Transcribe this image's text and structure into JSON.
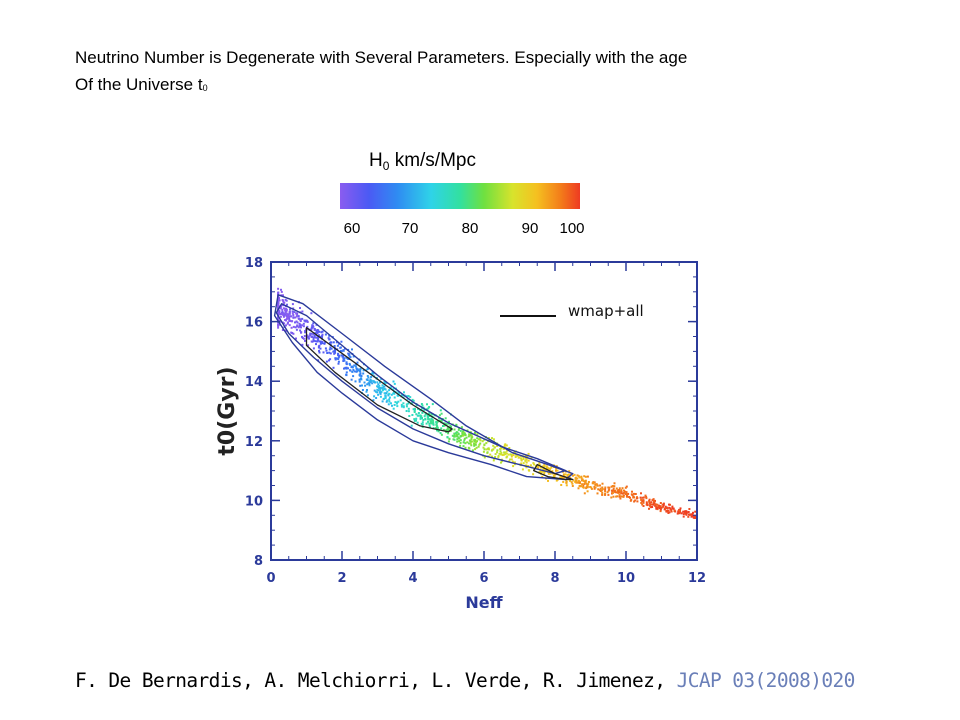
{
  "heading": {
    "line1": "Neutrino Number is Degenerate with Several Parameters.  Especially with the age",
    "line2_text": "Of the Universe t",
    "line2_sub": "0"
  },
  "colorbar": {
    "title_main": "H",
    "title_sub": "0",
    "title_unit": " km/s/Mpc",
    "ticks": [
      "60",
      "70",
      "80",
      "90",
      "100"
    ]
  },
  "citation": {
    "authors": "F. De Bernardis, A. Melchiorri, L. Verde, R. Jimenez, ",
    "journal": "JCAP 03(2008)020"
  },
  "colors": {
    "axis": "#2b3a9a",
    "contour": "#2b3a9a",
    "inner_contour": "#222222",
    "journal": "#6a7fb8"
  },
  "chart_data": {
    "type": "scatter",
    "xlabel": "Neff",
    "ylabel": "t0(Gyr)",
    "xlim": [
      0,
      12
    ],
    "ylim": [
      8,
      18
    ],
    "x_ticks": [
      "0",
      "2",
      "4",
      "6",
      "8",
      "10",
      "12"
    ],
    "y_ticks": [
      "8",
      "10",
      "12",
      "14",
      "16",
      "18"
    ],
    "legend": {
      "label": "wmap+all",
      "placement": "top-right"
    },
    "colorbar_range": [
      60,
      100
    ],
    "series": [
      {
        "kind": "scatter_band",
        "centerline": [
          {
            "x": 0.3,
            "t0": 16.4,
            "h0": 60
          },
          {
            "x": 1.0,
            "t0": 15.7,
            "h0": 62
          },
          {
            "x": 2.0,
            "t0": 14.8,
            "h0": 67
          },
          {
            "x": 3.0,
            "t0": 13.8,
            "h0": 73
          },
          {
            "x": 4.0,
            "t0": 13.1,
            "h0": 78
          },
          {
            "x": 5.0,
            "t0": 12.4,
            "h0": 82
          },
          {
            "x": 6.0,
            "t0": 11.8,
            "h0": 86
          },
          {
            "x": 7.0,
            "t0": 11.4,
            "h0": 89
          },
          {
            "x": 8.0,
            "t0": 10.9,
            "h0": 92
          },
          {
            "x": 9.0,
            "t0": 10.5,
            "h0": 95
          },
          {
            "x": 10.0,
            "t0": 10.2,
            "h0": 97
          },
          {
            "x": 11.0,
            "t0": 9.8,
            "h0": 99
          },
          {
            "x": 11.9,
            "t0": 9.5,
            "h0": 100
          }
        ]
      },
      {
        "kind": "contour_outer",
        "points": [
          [
            0.2,
            16.9
          ],
          [
            0.9,
            16.6
          ],
          [
            2.0,
            15.6
          ],
          [
            3.2,
            14.5
          ],
          [
            4.5,
            13.4
          ],
          [
            5.5,
            12.5
          ],
          [
            6.8,
            11.6
          ],
          [
            7.8,
            11.2
          ],
          [
            8.5,
            10.9
          ],
          [
            8.3,
            10.7
          ],
          [
            7.2,
            10.8
          ],
          [
            6.2,
            11.2
          ],
          [
            5.0,
            11.6
          ],
          [
            4.0,
            12.0
          ],
          [
            3.0,
            12.7
          ],
          [
            2.0,
            13.6
          ],
          [
            1.3,
            14.3
          ],
          [
            0.6,
            15.3
          ],
          [
            0.1,
            16.2
          ]
        ]
      },
      {
        "kind": "contour_inner",
        "points": [
          [
            0.3,
            16.6
          ],
          [
            1.0,
            16.2
          ],
          [
            2.0,
            15.2
          ],
          [
            3.0,
            14.2
          ],
          [
            4.0,
            13.3
          ],
          [
            5.0,
            12.6
          ],
          [
            6.5,
            11.8
          ],
          [
            7.5,
            11.4
          ],
          [
            8.3,
            11.0
          ],
          [
            8.0,
            10.9
          ],
          [
            7.0,
            11.2
          ],
          [
            6.0,
            11.5
          ],
          [
            5.0,
            11.9
          ],
          [
            4.0,
            12.4
          ],
          [
            3.0,
            13.1
          ],
          [
            2.0,
            14.0
          ],
          [
            1.2,
            14.8
          ],
          [
            0.5,
            15.6
          ],
          [
            0.15,
            16.3
          ]
        ]
      },
      {
        "kind": "contour_1sigma_a",
        "points": [
          [
            1.0,
            15.8
          ],
          [
            2.5,
            14.5
          ],
          [
            4.0,
            13.2
          ],
          [
            5.1,
            12.4
          ],
          [
            5.0,
            12.3
          ],
          [
            4.2,
            12.5
          ],
          [
            3.0,
            13.2
          ],
          [
            1.8,
            14.3
          ],
          [
            1.0,
            15.2
          ]
        ]
      },
      {
        "kind": "contour_1sigma_b",
        "points": [
          [
            7.5,
            11.2
          ],
          [
            8.0,
            10.9
          ],
          [
            8.5,
            10.7
          ],
          [
            8.3,
            10.7
          ],
          [
            7.8,
            10.8
          ],
          [
            7.4,
            11.0
          ]
        ]
      }
    ]
  }
}
